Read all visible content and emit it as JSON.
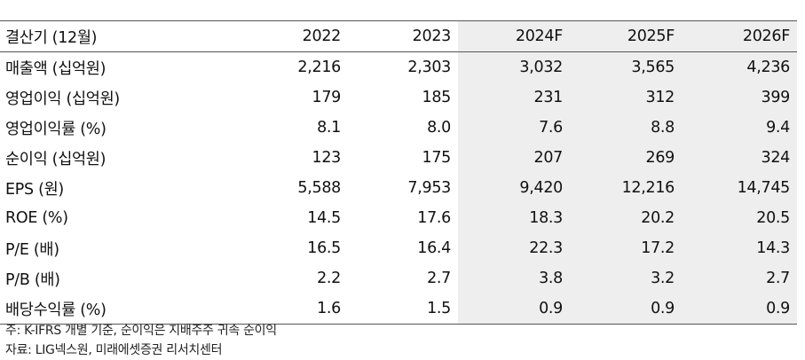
{
  "table": {
    "columns": [
      "결산기 (12월)",
      "2022",
      "2023",
      "2024F",
      "2025F",
      "2026F"
    ],
    "rows": [
      {
        "label": "매출액 (십억원)",
        "values": [
          "2,216",
          "2,303",
          "3,032",
          "3,565",
          "4,236"
        ]
      },
      {
        "label": "영업이익 (십억원)",
        "values": [
          "179",
          "185",
          "231",
          "312",
          "399"
        ]
      },
      {
        "label": "영업이익률 (%)",
        "values": [
          "8.1",
          "8.0",
          "7.6",
          "8.8",
          "9.4"
        ]
      },
      {
        "label": "순이익 (십억원)",
        "values": [
          "123",
          "175",
          "207",
          "269",
          "324"
        ]
      },
      {
        "label": "EPS (원)",
        "values": [
          "5,588",
          "7,953",
          "9,420",
          "12,216",
          "14,745"
        ]
      },
      {
        "label": "ROE (%)",
        "values": [
          "14.5",
          "17.6",
          "18.3",
          "20.2",
          "20.5"
        ]
      },
      {
        "label": "P/E (배)",
        "values": [
          "16.5",
          "16.4",
          "22.3",
          "17.2",
          "14.3"
        ]
      },
      {
        "label": "P/B (배)",
        "values": [
          "2.2",
          "2.7",
          "3.8",
          "3.2",
          "2.7"
        ]
      },
      {
        "label": "배당수익률 (%)",
        "values": [
          "1.6",
          "1.5",
          "0.9",
          "0.9",
          "0.9"
        ]
      }
    ],
    "shading_color": "#eeeeee"
  },
  "notes": {
    "note": "주: K-IFRS 개별 기준, 순이익은 지배주주 귀속 순이익",
    "source": "자료: LIG넥스원, 미래에셋증권 리서치센터"
  }
}
